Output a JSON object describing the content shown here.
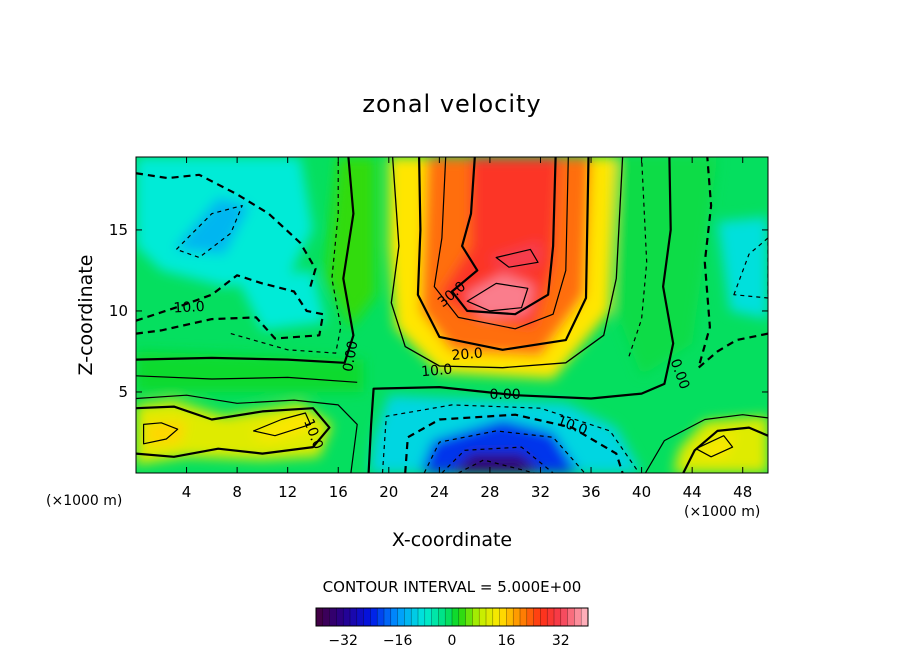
{
  "chart_data": {
    "type": "heatmap",
    "title": "zonal velocity",
    "xlabel": "X-coordinate",
    "ylabel": "Z-coordinate",
    "x_unit_left": "(×1000 m)",
    "x_unit_right": "(×1000 m)",
    "xlim": [
      0,
      50
    ],
    "ylim": [
      0,
      19.5
    ],
    "x_ticks": [
      4,
      8,
      12,
      16,
      20,
      24,
      28,
      32,
      36,
      40,
      44,
      48
    ],
    "y_ticks": [
      5,
      10,
      15
    ],
    "contour_interval_text": "CONTOUR INTERVAL = 5.000E+00",
    "contour_labels": [
      {
        "text": "10.0",
        "x": 4.2,
        "y": 10.2,
        "angle": -3
      },
      {
        "text": "0.00",
        "x": 17.0,
        "y": 7.2,
        "angle": -80
      },
      {
        "text": "10.0",
        "x": 14.0,
        "y": 2.4,
        "angle": 70
      },
      {
        "text": "30.0",
        "x": 25.0,
        "y": 11.0,
        "angle": -40
      },
      {
        "text": "20.0",
        "x": 26.2,
        "y": 7.3,
        "angle": -5
      },
      {
        "text": "10.0",
        "x": 23.8,
        "y": 6.3,
        "angle": -5
      },
      {
        "text": "0.00",
        "x": 29.2,
        "y": 4.8,
        "angle": 0
      },
      {
        "text": "10.0",
        "x": 34.5,
        "y": 2.9,
        "angle": 20
      },
      {
        "text": "0.00",
        "x": 43.0,
        "y": 6.1,
        "angle": 70
      }
    ],
    "features": [
      {
        "name": "positive jet core",
        "x": 29.5,
        "z": 11.0,
        "value": 35
      },
      {
        "name": "upper jet",
        "x": 29.5,
        "z": 17.5,
        "value": 26
      },
      {
        "name": "negative core",
        "x": 28.5,
        "z": 0.8,
        "value": -34
      },
      {
        "name": "upper-left negative",
        "x": 5.5,
        "z": 15.5,
        "value": -12
      },
      {
        "name": "mid-left negative",
        "x": 11.0,
        "z": 10.5,
        "value": -10
      },
      {
        "name": "right negative",
        "x": 49.0,
        "z": 12.5,
        "value": -10
      },
      {
        "name": "lower-left positive",
        "x": 3.0,
        "z": 2.5,
        "value": 12
      },
      {
        "name": "lower-mid positive",
        "x": 11.0,
        "z": 3.0,
        "value": 13
      },
      {
        "name": "lower-right positive",
        "x": 45.5,
        "z": 1.8,
        "value": 13
      }
    ],
    "colorbar": {
      "min": -40,
      "max": 40,
      "tick_labels": [
        "−32",
        "−16",
        "0",
        "16",
        "32"
      ],
      "tick_values": [
        -32,
        -16,
        0,
        16,
        32
      ]
    }
  }
}
